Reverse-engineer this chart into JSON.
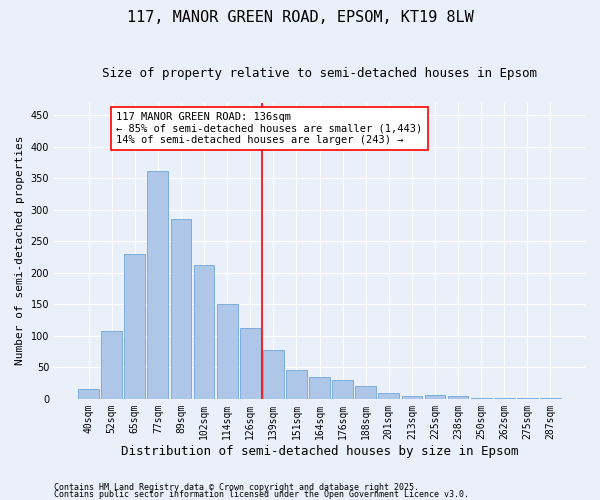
{
  "title": "117, MANOR GREEN ROAD, EPSOM, KT19 8LW",
  "subtitle": "Size of property relative to semi-detached houses in Epsom",
  "xlabel": "Distribution of semi-detached houses by size in Epsom",
  "ylabel": "Number of semi-detached properties",
  "bar_labels": [
    "40sqm",
    "52sqm",
    "65sqm",
    "77sqm",
    "89sqm",
    "102sqm",
    "114sqm",
    "126sqm",
    "139sqm",
    "151sqm",
    "164sqm",
    "176sqm",
    "188sqm",
    "201sqm",
    "213sqm",
    "225sqm",
    "238sqm",
    "250sqm",
    "262sqm",
    "275sqm",
    "287sqm"
  ],
  "bar_values": [
    15,
    108,
    230,
    362,
    285,
    213,
    150,
    112,
    78,
    46,
    34,
    30,
    20,
    10,
    4,
    6,
    5,
    2,
    1,
    1,
    1
  ],
  "bar_color": "#aec6e8",
  "bar_edge_color": "#5b9bd5",
  "vline_color": "red",
  "annotation_title": "117 MANOR GREEN ROAD: 136sqm",
  "annotation_line1": "← 85% of semi-detached houses are smaller (1,443)",
  "annotation_line2": "14% of semi-detached houses are larger (243) →",
  "ylim": [
    0,
    470
  ],
  "yticks": [
    0,
    50,
    100,
    150,
    200,
    250,
    300,
    350,
    400,
    450
  ],
  "footer1": "Contains HM Land Registry data © Crown copyright and database right 2025.",
  "footer2": "Contains public sector information licensed under the Open Government Licence v3.0.",
  "background_color": "#eaf0f9",
  "plot_bg_color": "#eaf0f9",
  "grid_color": "white",
  "title_fontsize": 11,
  "subtitle_fontsize": 9,
  "xlabel_fontsize": 9,
  "ylabel_fontsize": 8,
  "tick_fontsize": 7,
  "annotation_fontsize": 7.5,
  "footer_fontsize": 6
}
